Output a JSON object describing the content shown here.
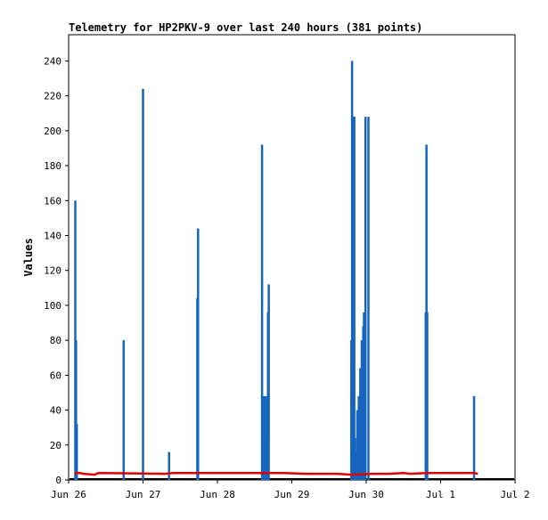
{
  "chart_data": {
    "type": "line",
    "title": "Telemetry for HP2PKV-9 over last 240 hours (381 points)",
    "xlabel": "",
    "ylabel": "Values",
    "xlim": [
      0,
      6
    ],
    "ylim": [
      0,
      255
    ],
    "x_ticks": [
      {
        "value": 0,
        "label": "Jun 26"
      },
      {
        "value": 1,
        "label": "Jun 27"
      },
      {
        "value": 2,
        "label": "Jun 28"
      },
      {
        "value": 3,
        "label": "Jun 29"
      },
      {
        "value": 4,
        "label": "Jun 30"
      },
      {
        "value": 5,
        "label": "Jul 1"
      },
      {
        "value": 6,
        "label": "Jul 2"
      }
    ],
    "y_ticks": [
      0,
      20,
      40,
      60,
      80,
      100,
      120,
      140,
      160,
      180,
      200,
      220,
      240
    ],
    "grid": false,
    "legend": "none",
    "colors": {
      "spikes": "#1565c0",
      "baseline": "#000000",
      "level": "#e00000"
    },
    "spikes": [
      {
        "x": 0.09,
        "y": 160
      },
      {
        "x": 0.1,
        "y": 80
      },
      {
        "x": 0.11,
        "y": 32
      },
      {
        "x": 0.74,
        "y": 80
      },
      {
        "x": 1.0,
        "y": 224
      },
      {
        "x": 1.35,
        "y": 16
      },
      {
        "x": 1.73,
        "y": 104
      },
      {
        "x": 1.74,
        "y": 144
      },
      {
        "x": 2.6,
        "y": 192
      },
      {
        "x": 2.62,
        "y": 48
      },
      {
        "x": 2.65,
        "y": 48
      },
      {
        "x": 2.67,
        "y": 24
      },
      {
        "x": 2.68,
        "y": 96
      },
      {
        "x": 2.69,
        "y": 112
      },
      {
        "x": 3.8,
        "y": 80
      },
      {
        "x": 3.81,
        "y": 240
      },
      {
        "x": 3.83,
        "y": 208
      },
      {
        "x": 3.84,
        "y": 208
      },
      {
        "x": 3.85,
        "y": 24
      },
      {
        "x": 3.87,
        "y": 16
      },
      {
        "x": 3.88,
        "y": 40
      },
      {
        "x": 3.9,
        "y": 48
      },
      {
        "x": 3.92,
        "y": 64
      },
      {
        "x": 3.94,
        "y": 80
      },
      {
        "x": 3.96,
        "y": 88
      },
      {
        "x": 3.97,
        "y": 96
      },
      {
        "x": 3.99,
        "y": 208
      },
      {
        "x": 4.03,
        "y": 208
      },
      {
        "x": 4.8,
        "y": 96
      },
      {
        "x": 4.81,
        "y": 192
      },
      {
        "x": 4.82,
        "y": 96
      },
      {
        "x": 5.45,
        "y": 48
      }
    ],
    "red_series": [
      {
        "x": 0.08,
        "y": 4
      },
      {
        "x": 0.15,
        "y": 4
      },
      {
        "x": 0.2,
        "y": 3.5
      },
      {
        "x": 0.35,
        "y": 3
      },
      {
        "x": 0.4,
        "y": 4
      },
      {
        "x": 1.3,
        "y": 3.5
      },
      {
        "x": 1.4,
        "y": 4
      },
      {
        "x": 2.1,
        "y": 4
      },
      {
        "x": 2.5,
        "y": 4
      },
      {
        "x": 2.9,
        "y": 4
      },
      {
        "x": 3.2,
        "y": 3.5
      },
      {
        "x": 3.6,
        "y": 3.5
      },
      {
        "x": 3.8,
        "y": 3
      },
      {
        "x": 4.1,
        "y": 3.5
      },
      {
        "x": 4.3,
        "y": 3.5
      },
      {
        "x": 4.5,
        "y": 4
      },
      {
        "x": 4.6,
        "y": 3.5
      },
      {
        "x": 4.8,
        "y": 4
      },
      {
        "x": 5.2,
        "y": 4
      },
      {
        "x": 5.45,
        "y": 4
      },
      {
        "x": 5.5,
        "y": 3.5
      }
    ]
  }
}
